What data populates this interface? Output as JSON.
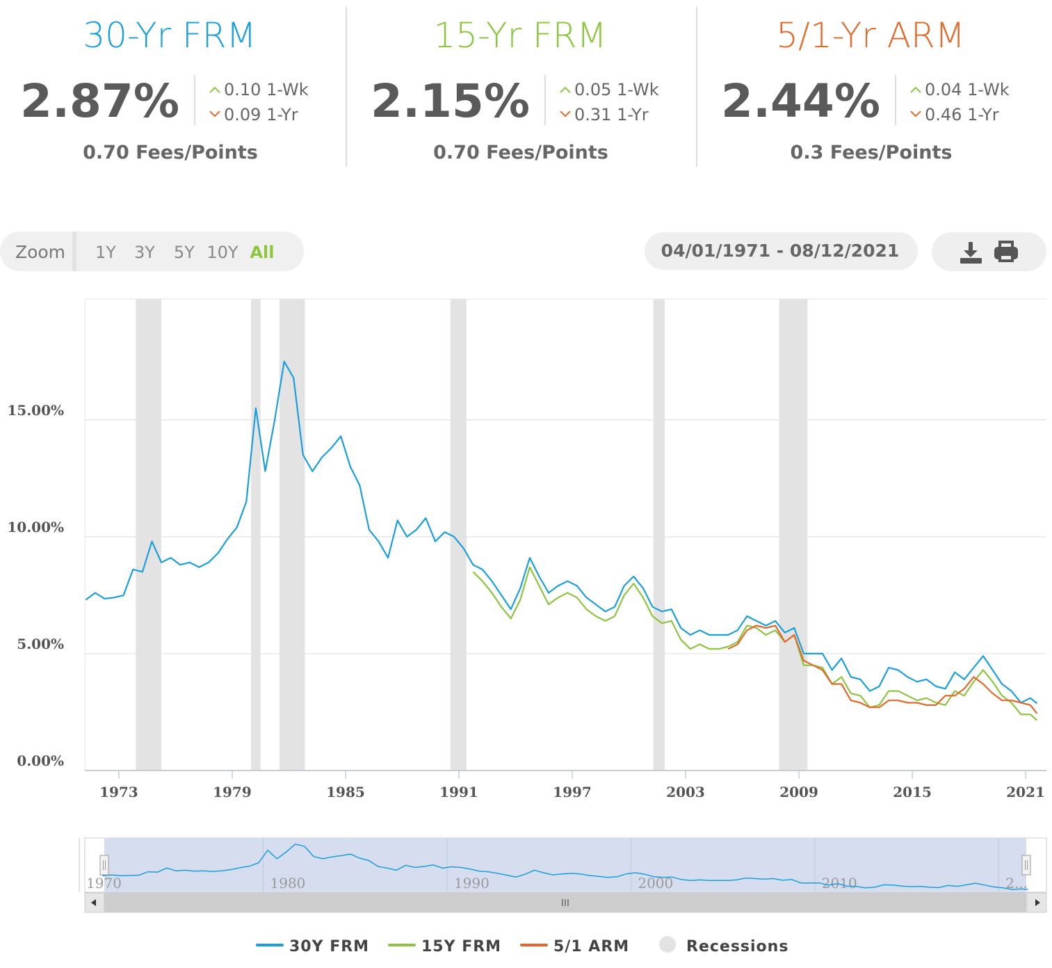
{
  "cards": [
    {
      "title": "30-Yr FRM",
      "color": "#1ea0dc",
      "rate": "2.87%",
      "week": "0.10 1-Wk",
      "year": "0.09 1-Yr",
      "fees": "0.70 Fees/Points"
    },
    {
      "title": "15-Yr FRM",
      "color": "#8cc63f",
      "rate": "2.15%",
      "week": "0.05 1-Wk",
      "year": "0.31 1-Yr",
      "fees": "0.70 Fees/Points"
    },
    {
      "title": "5/1-Yr ARM",
      "color": "#e06b2b",
      "rate": "2.44%",
      "week": "0.04 1-Wk",
      "year": "0.46 1-Yr",
      "fees": "0.3 Fees/Points"
    }
  ],
  "zoom": {
    "label": "Zoom",
    "buttons": [
      "1Y",
      "3Y",
      "5Y",
      "10Y",
      "All"
    ],
    "active": 4
  },
  "date_range": "04/01/1971 - 08/12/2021",
  "chart_data": {
    "type": "line",
    "x": [
      1971.25,
      1971.75,
      1972.25,
      1972.75,
      1973.25,
      1973.75,
      1974.25,
      1974.75,
      1975.25,
      1975.75,
      1976.25,
      1976.75,
      1977.25,
      1977.75,
      1978.25,
      1978.75,
      1979.25,
      1979.75,
      1980.25,
      1980.75,
      1981.25,
      1981.75,
      1982.25,
      1982.75,
      1983.25,
      1983.75,
      1984.25,
      1984.75,
      1985.25,
      1985.75,
      1986.25,
      1986.75,
      1987.25,
      1987.75,
      1988.25,
      1988.75,
      1989.25,
      1989.75,
      1990.25,
      1990.75,
      1991.25,
      1991.75,
      1992.25,
      1992.75,
      1993.25,
      1993.75,
      1994.25,
      1994.75,
      1995.25,
      1995.75,
      1996.25,
      1996.75,
      1997.25,
      1997.75,
      1998.25,
      1998.75,
      1999.25,
      1999.75,
      2000.25,
      2000.75,
      2001.25,
      2001.75,
      2002.25,
      2002.75,
      2003.25,
      2003.75,
      2004.25,
      2004.75,
      2005.25,
      2005.75,
      2006.25,
      2006.75,
      2007.25,
      2007.75,
      2008.25,
      2008.75,
      2009.25,
      2009.75,
      2010.25,
      2010.75,
      2011.25,
      2011.75,
      2012.25,
      2012.75,
      2013.25,
      2013.75,
      2014.25,
      2014.75,
      2015.25,
      2015.75,
      2016.25,
      2016.75,
      2017.25,
      2017.75,
      2018.25,
      2018.75,
      2019.25,
      2019.75,
      2020.25,
      2020.75,
      2021.25,
      2021.6
    ],
    "series": [
      {
        "name": "30Y FRM",
        "color": "#1a9fdb",
        "values": [
          7.3,
          7.6,
          7.35,
          7.4,
          7.5,
          8.6,
          8.5,
          9.8,
          8.9,
          9.1,
          8.8,
          8.9,
          8.7,
          8.9,
          9.3,
          9.9,
          10.4,
          11.5,
          15.5,
          12.8,
          15.0,
          17.5,
          16.8,
          13.5,
          12.8,
          13.4,
          13.8,
          14.3,
          13.0,
          12.2,
          10.3,
          9.8,
          9.1,
          10.7,
          10.0,
          10.3,
          10.8,
          9.8,
          10.2,
          10.0,
          9.5,
          8.8,
          8.6,
          8.1,
          7.5,
          6.9,
          7.8,
          9.1,
          8.3,
          7.6,
          7.9,
          8.1,
          7.9,
          7.4,
          7.1,
          6.8,
          7.0,
          7.9,
          8.3,
          7.8,
          7.0,
          6.8,
          6.9,
          6.1,
          5.8,
          6.0,
          5.8,
          5.8,
          5.8,
          6.0,
          6.6,
          6.4,
          6.2,
          6.4,
          5.9,
          6.1,
          5.0,
          5.0,
          5.0,
          4.3,
          4.8,
          4.0,
          3.9,
          3.4,
          3.6,
          4.4,
          4.3,
          4.0,
          3.8,
          3.9,
          3.6,
          3.5,
          4.2,
          3.9,
          4.4,
          4.9,
          4.3,
          3.7,
          3.4,
          2.9,
          3.1,
          2.87
        ]
      },
      {
        "name": "15Y FRM",
        "color": "#8dc43f",
        "values": [
          null,
          null,
          null,
          null,
          null,
          null,
          null,
          null,
          null,
          null,
          null,
          null,
          null,
          null,
          null,
          null,
          null,
          null,
          null,
          null,
          null,
          null,
          null,
          null,
          null,
          null,
          null,
          null,
          null,
          null,
          null,
          null,
          null,
          null,
          null,
          null,
          null,
          null,
          null,
          null,
          null,
          8.5,
          8.1,
          7.6,
          7.0,
          6.5,
          7.3,
          8.7,
          7.9,
          7.1,
          7.4,
          7.6,
          7.4,
          6.9,
          6.6,
          6.4,
          6.6,
          7.5,
          8.0,
          7.4,
          6.6,
          6.3,
          6.4,
          5.6,
          5.2,
          5.4,
          5.2,
          5.2,
          5.3,
          5.5,
          6.2,
          6.1,
          5.8,
          6.0,
          5.5,
          5.8,
          4.5,
          4.5,
          4.4,
          3.7,
          4.0,
          3.3,
          3.2,
          2.7,
          2.8,
          3.4,
          3.4,
          3.2,
          3.0,
          3.1,
          2.9,
          2.8,
          3.4,
          3.2,
          3.8,
          4.3,
          3.8,
          3.2,
          2.9,
          2.4,
          2.4,
          2.15
        ]
      },
      {
        "name": "5/1 ARM",
        "color": "#e0692a",
        "values": [
          null,
          null,
          null,
          null,
          null,
          null,
          null,
          null,
          null,
          null,
          null,
          null,
          null,
          null,
          null,
          null,
          null,
          null,
          null,
          null,
          null,
          null,
          null,
          null,
          null,
          null,
          null,
          null,
          null,
          null,
          null,
          null,
          null,
          null,
          null,
          null,
          null,
          null,
          null,
          null,
          null,
          null,
          null,
          null,
          null,
          null,
          null,
          null,
          null,
          null,
          null,
          null,
          null,
          null,
          null,
          null,
          null,
          null,
          null,
          null,
          null,
          null,
          null,
          null,
          null,
          null,
          null,
          null,
          5.2,
          5.4,
          6.0,
          6.2,
          6.1,
          6.2,
          5.5,
          5.8,
          4.7,
          4.5,
          4.3,
          3.7,
          3.7,
          3.0,
          2.9,
          2.7,
          2.7,
          3.0,
          3.0,
          2.9,
          2.9,
          2.8,
          2.8,
          3.2,
          3.2,
          3.5,
          4.0,
          3.7,
          3.3,
          3.0,
          3.0,
          2.9,
          2.8,
          2.44
        ]
      }
    ],
    "recessions_name": "Recessions",
    "recessions_color": "#e3e3e3",
    "recessions": [
      [
        1973.9,
        1975.25
      ],
      [
        1980.0,
        1980.5
      ],
      [
        1981.5,
        1982.85
      ],
      [
        1990.55,
        1991.4
      ],
      [
        2001.3,
        2001.9
      ],
      [
        2007.95,
        2009.45
      ]
    ],
    "xlim": [
      1971.2,
      2022.1
    ],
    "xticks": [
      1973,
      1979,
      1985,
      1991,
      1997,
      2003,
      2009,
      2015,
      2021
    ],
    "ylim": [
      0,
      20.17
    ],
    "yticks": [
      {
        "value": 0,
        "label": "0.00%"
      },
      {
        "value": 5,
        "label": "5.00%"
      },
      {
        "value": 10,
        "label": "10.00%"
      },
      {
        "value": 15,
        "label": "15.00%"
      }
    ],
    "grid": true,
    "navigator": {
      "xlim": [
        1970.3,
        2022.6
      ],
      "xticks": [
        1970,
        1980,
        1990,
        2000,
        2010,
        {
          "value": 2020,
          "label": "2..."
        }
      ]
    }
  }
}
